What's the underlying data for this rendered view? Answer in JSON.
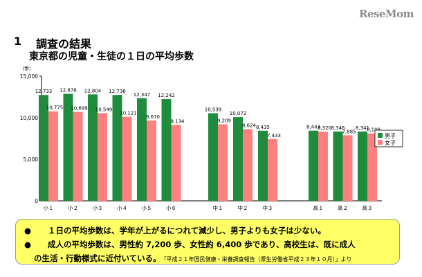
{
  "logo": "ReseMom",
  "section": {
    "number": "1",
    "title": "調査の結果"
  },
  "subtitle": "東京都の児童・生徒の１日の平均歩数",
  "note": {
    "bullet": "●",
    "line1": "１日の平均歩数は、学年が上がるにつれて減少し、男子よりも女子は少ない。",
    "line2": "成人の平均歩数は、男性約 7,200 歩、女性約 6,400 歩であり、高校生は、既に成人",
    "line3": "の生活・行動様式に近付いている。",
    "source": "「平成２１年国民健康・栄養調査報告（厚生労働省平成２３年１０月）」より"
  },
  "chart_data": {
    "type": "bar",
    "title": "",
    "xlabel": "",
    "ylabel": "（歩）",
    "ylim": [
      0,
      15000
    ],
    "yticks": [
      0,
      5000,
      10000,
      15000
    ],
    "ytick_labels": [
      "0",
      "5,000",
      "10,000",
      "15,000"
    ],
    "grid": false,
    "legend_position": "right",
    "categories": [
      "小１",
      "小２",
      "小３",
      "小４",
      "小５",
      "小６",
      "中１",
      "中２",
      "中３",
      "高１",
      "高２",
      "高３"
    ],
    "groups": [
      6,
      3,
      3
    ],
    "series": [
      {
        "name": "男子",
        "color": "#1e8c3c",
        "values": [
          12733,
          12878,
          12804,
          12736,
          12347,
          12242,
          10539,
          10072,
          8435,
          8443,
          8346,
          8341
        ],
        "labels": [
          "12,733",
          "12,878",
          "12,804",
          "12,736",
          "12,347",
          "12,242",
          "10,539",
          "10,072",
          "8,435",
          "8,443",
          "8,346",
          "8,341"
        ]
      },
      {
        "name": "女子",
        "color": "#ff8080",
        "values": [
          10775,
          10699,
          10549,
          10121,
          9670,
          9134,
          9209,
          8624,
          7433,
          8320,
          7885,
          8108
        ],
        "labels": [
          "10,775",
          "10,699",
          "10,549",
          "10,121",
          "9,670",
          "9,134",
          "9,209",
          "8,624",
          "7,433",
          "8,320",
          "7,885",
          "8,108"
        ]
      }
    ]
  }
}
